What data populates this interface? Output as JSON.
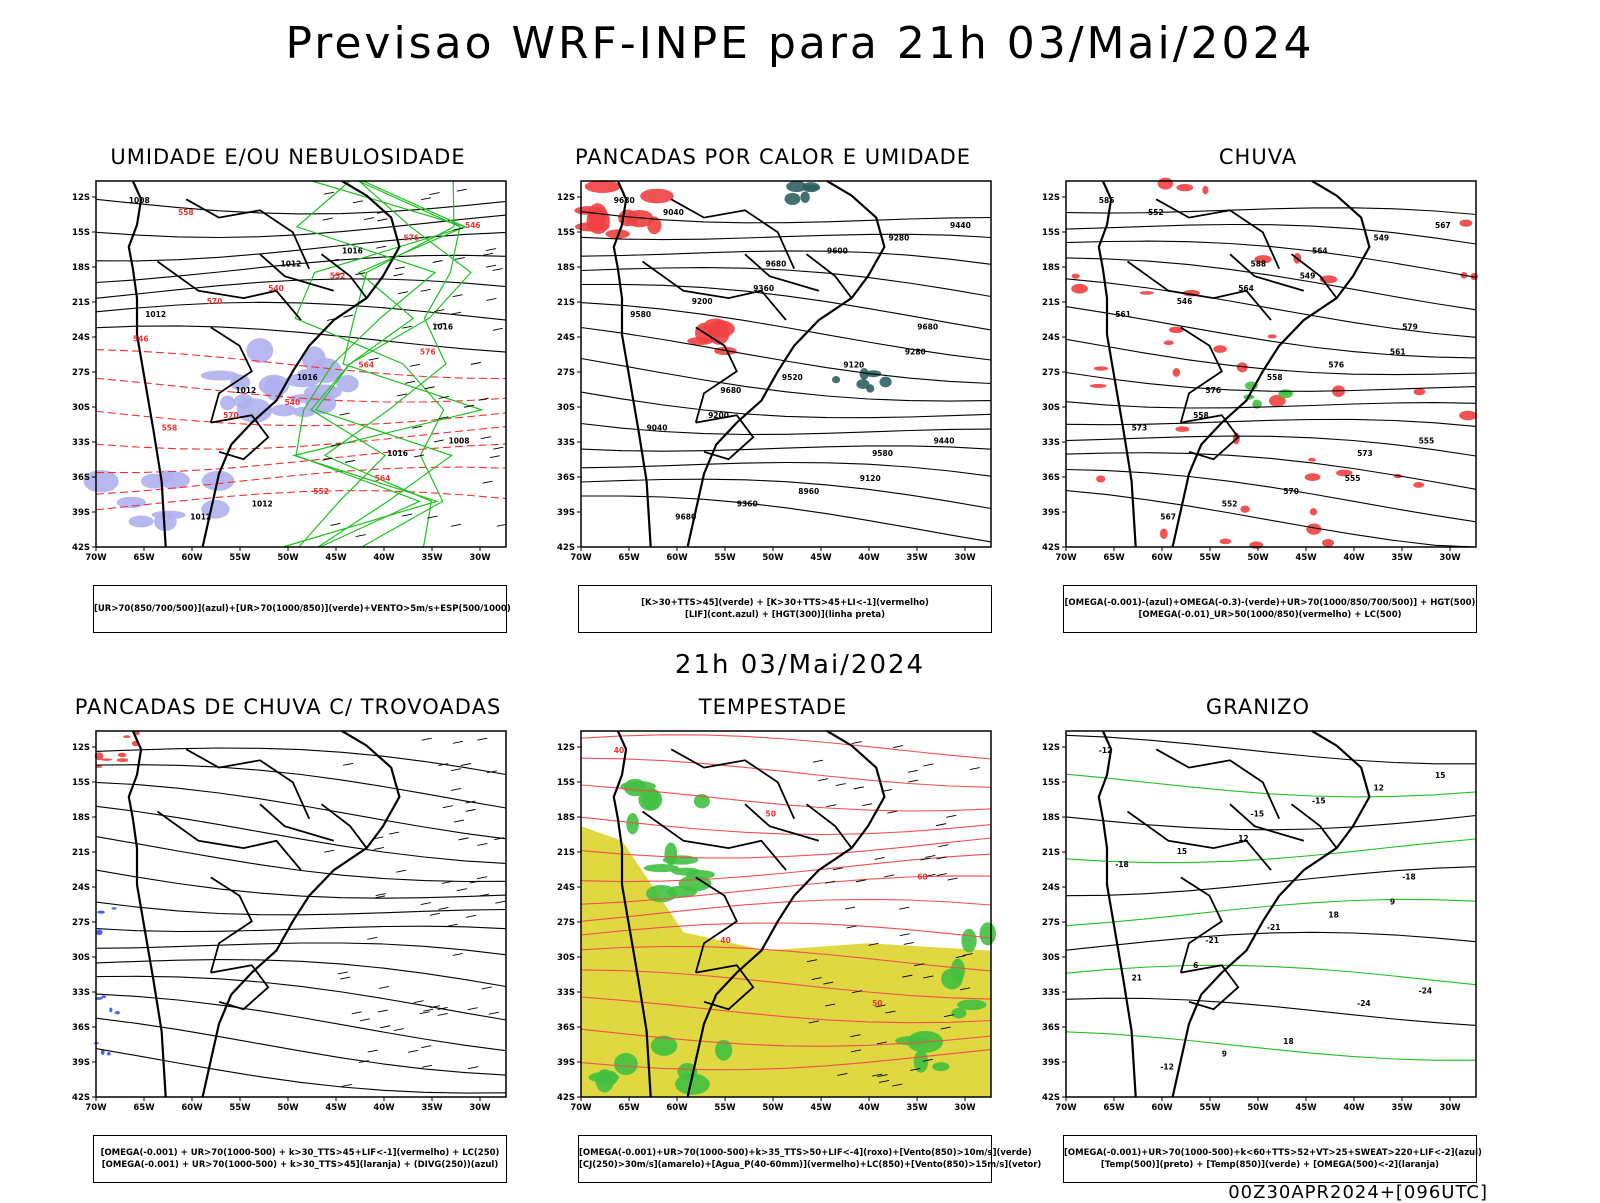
{
  "main_title": "Previsao WRF-INPE  para 21h 03/Mai/2024",
  "mid_title": "21h 03/Mai/2024",
  "footer": "00Z30APR2024+[096UTC]",
  "axes": {
    "lat_labels": [
      "12S",
      "15S",
      "18S",
      "21S",
      "24S",
      "27S",
      "30S",
      "33S",
      "36S",
      "39S",
      "42S"
    ],
    "lon_labels": [
      "70W",
      "65W",
      "60W",
      "55W",
      "50W",
      "45W",
      "40W",
      "35W",
      "30W"
    ]
  },
  "panels": [
    {
      "id": "umidade",
      "title": "UMIDADE E/OU NEBULOSIDADE",
      "legend": [
        "[UR>70(850/700/500)](azul)+[UR>70(1000/850)](verde)+VENTO>5m/s+ESP(500/1000)"
      ],
      "contour_labels": [
        "1008",
        "1012",
        "1016",
        "1012",
        "1016",
        "1012",
        "1016",
        "1012",
        "1016",
        "1008",
        "1012",
        "576",
        "570",
        "564",
        "558",
        "552",
        "546",
        "540",
        "576",
        "570",
        "564",
        "558",
        "552",
        "546",
        "540"
      ]
    },
    {
      "id": "pancadas-calor",
      "title": "PANCADAS POR CALOR E UMIDADE",
      "legend": [
        "[K>30+TTS>45](verde) + [K>30+TTS>45+LI<-1](vermelho)",
        "[LIF](cont.azul) + [HGT(300)](linha preta)"
      ],
      "contour_labels": [
        "9680",
        "9680",
        "9680",
        "9680",
        "9580",
        "9680",
        "9600",
        "9580",
        "9520",
        "9440",
        "9360",
        "9280",
        "9200",
        "9120",
        "9040",
        "8960",
        "9440",
        "9360",
        "9280",
        "9200",
        "9120",
        "9040"
      ]
    },
    {
      "id": "chuva",
      "title": "CHUVA",
      "legend": [
        "[OMEGA(-0.001)-(azul)+OMEGA(-0.3)-(verde)+UR>70(1000/850/700/500)] + HGT(500)",
        "[OMEGA(-0.01)_UR>50(1000/850)(vermelho) + LC(500)"
      ],
      "contour_labels": [
        "585",
        "588",
        "579",
        "576",
        "573",
        "567",
        "564",
        "561",
        "558",
        "555",
        "552",
        "549",
        "546",
        "576",
        "573",
        "570",
        "567",
        "564",
        "561",
        "558",
        "555",
        "552",
        "549"
      ]
    },
    {
      "id": "pancadas-trovoadas",
      "title": "PANCADAS DE CHUVA C/ TROVOADAS",
      "legend": [
        "[OMEGA(-0.001) + UR>70(1000-500) + k>30_TTS>45+LIF<-1](vermelho) + LC(250)",
        "[OMEGA(-0.001) + UR>70(1000-500) + k>30_TTS>45](laranja) + (DIVG(250))(azul)"
      ],
      "contour_labels": []
    },
    {
      "id": "tempestade",
      "title": "TEMPESTADE",
      "legend": [
        "[OMEGA(-0.001)+UR>70(1000-500)+k>35_TTS>50+LIF<-4](roxo)+[Vento(850)>10m/s](verde)",
        "[CJ(250)>30m/s](amarelo)+[Agua_P(40-60mm)](vermelho)+LC(850)+[Vento(850)>15m/s](vetor)"
      ],
      "contour_labels": [
        "40",
        "50",
        "60",
        "40",
        "50"
      ]
    },
    {
      "id": "granizo",
      "title": "GRANIZO",
      "legend": [
        "[OMEGA(-0.001)+UR>70(1000-500)+k<60+TTS>52+VT>25+SWEAT>220+LIF<-2](azul)",
        "[Temp(500)](preto) + [Temp(850)](verde) + [OMEGA(500)<-2](laranja)"
      ],
      "contour_labels": [
        "-12",
        "-15",
        "-18",
        "-21",
        "-24",
        "-12",
        "-15",
        "-18",
        "-21",
        "-24",
        "9",
        "12",
        "15",
        "18",
        "21",
        "18",
        "15",
        "12",
        "9",
        "6"
      ]
    }
  ]
}
